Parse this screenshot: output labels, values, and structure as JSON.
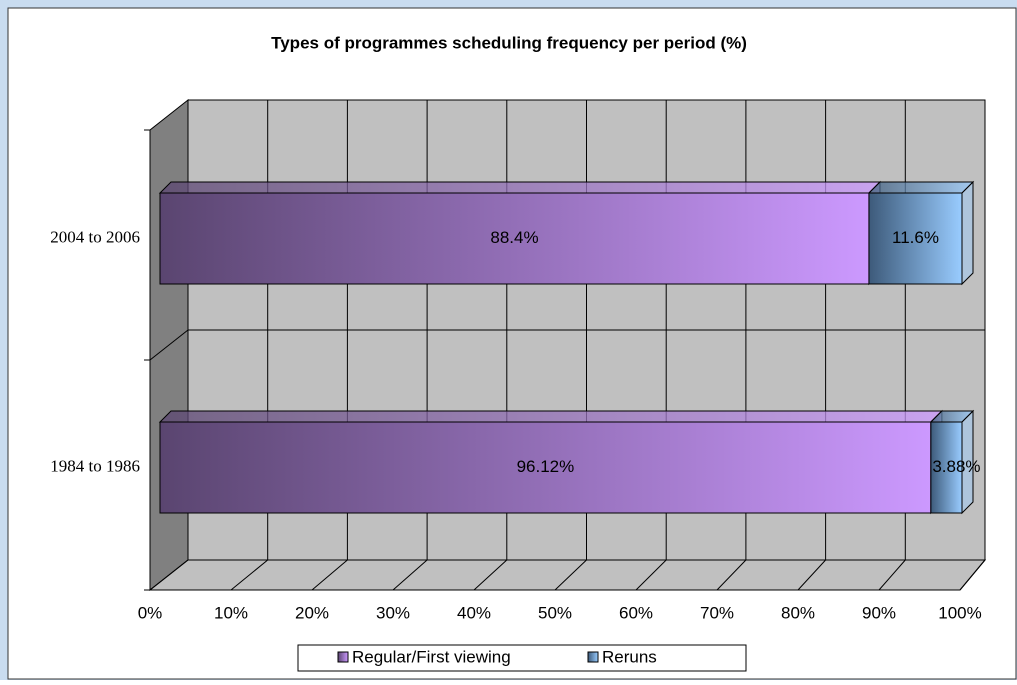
{
  "chart_data": {
    "type": "bar3d_stacked_horizontal",
    "title": "Types of programmes scheduling frequency per period (%)",
    "categories": [
      "1984 to 1986",
      "2004 to 2006"
    ],
    "series": [
      {
        "name": "Regular/First viewing",
        "color": "#cc99ff",
        "values": [
          96.12,
          88.4
        ],
        "value_labels": [
          "96.12%",
          "88.4%"
        ]
      },
      {
        "name": "Reruns",
        "color": "#99ccff",
        "values": [
          3.88,
          11.6
        ],
        "value_labels": [
          "3.88%",
          "11.6%"
        ]
      }
    ],
    "xlim": [
      0,
      100
    ],
    "xticks": [
      {
        "value": 0,
        "label": "0%"
      },
      {
        "value": 10,
        "label": "10%"
      },
      {
        "value": 20,
        "label": "20%"
      },
      {
        "value": 30,
        "label": "30%"
      },
      {
        "value": 40,
        "label": "40%"
      },
      {
        "value": 50,
        "label": "50%"
      },
      {
        "value": 60,
        "label": "60%"
      },
      {
        "value": 70,
        "label": "70%"
      },
      {
        "value": 80,
        "label": "80%"
      },
      {
        "value": 90,
        "label": "90%"
      },
      {
        "value": 100,
        "label": "100%"
      }
    ],
    "grid": true,
    "legend": "bottom"
  }
}
